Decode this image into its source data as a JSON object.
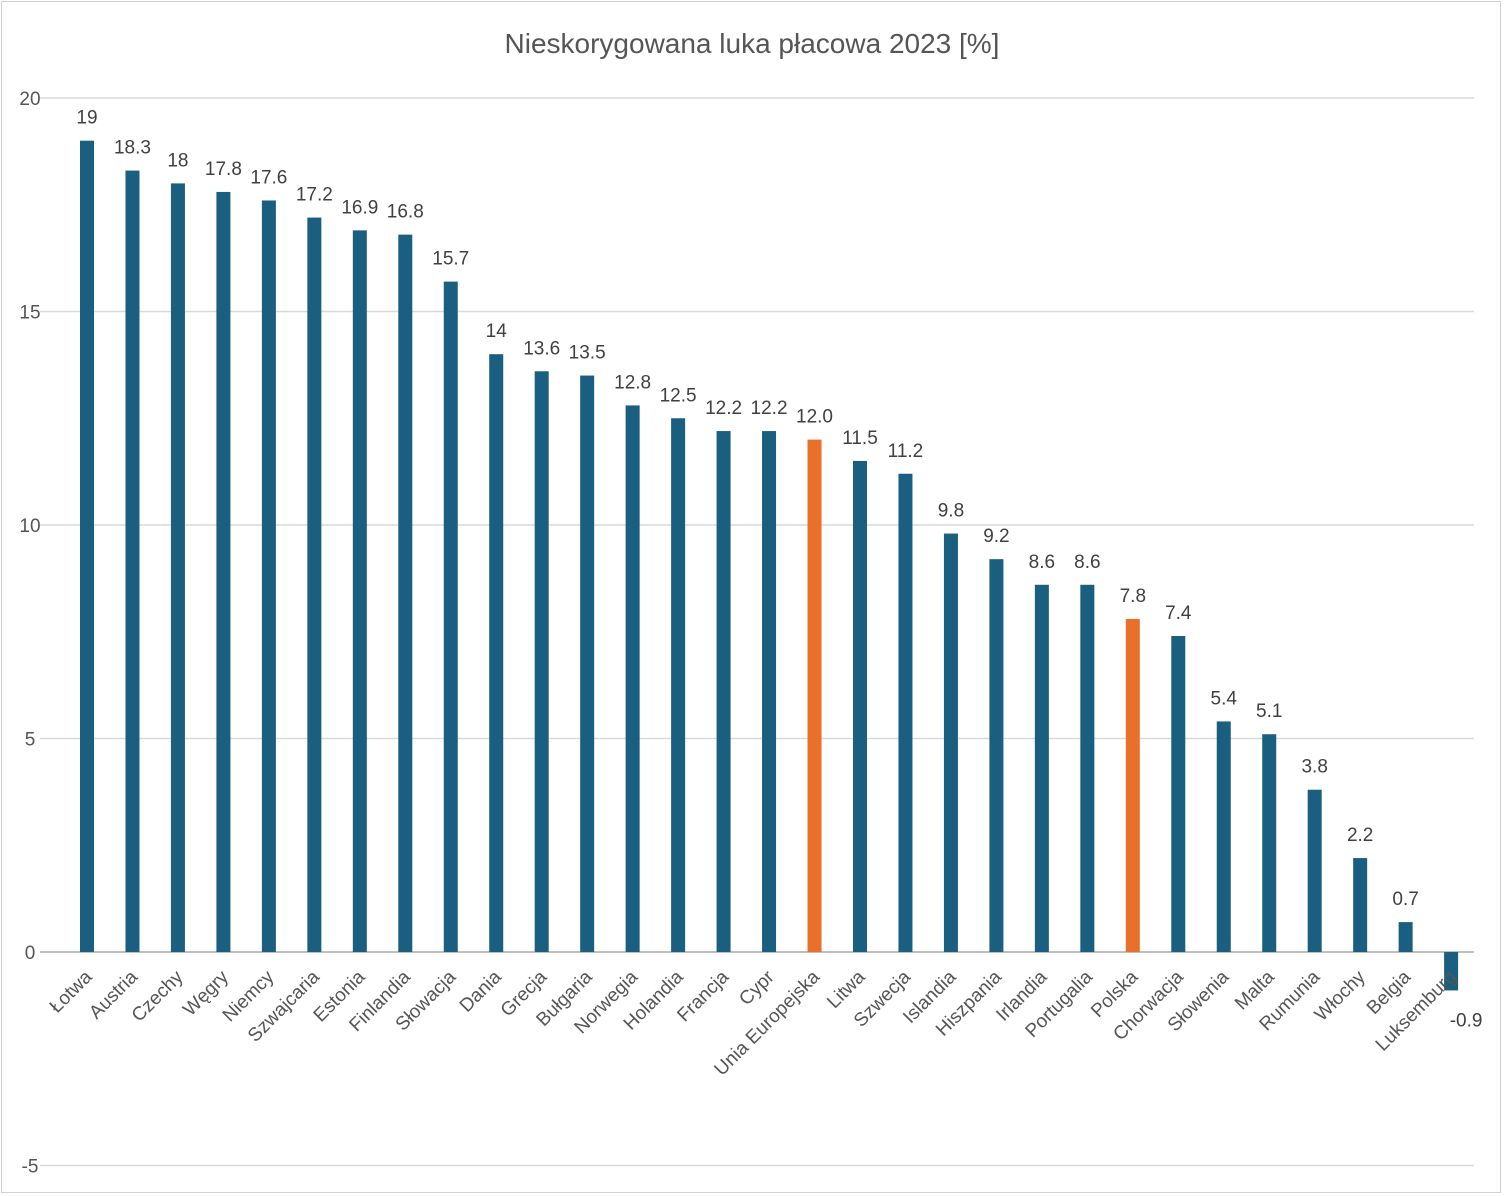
{
  "chart_data": {
    "type": "bar",
    "title": "Nieskorygowana luka płacowa 2023 [%]",
    "xlabel": "",
    "ylabel": "",
    "ylim": [
      -5,
      20
    ],
    "yticks": [
      -5,
      0,
      5,
      10,
      15,
      20
    ],
    "grid": true,
    "legend": "none",
    "categories": [
      "Łotwa",
      "Austria",
      "Czechy",
      "Węgry",
      "Niemcy",
      "Szwajcaria",
      "Estonia",
      "Finlandia",
      "Słowacja",
      "Dania",
      "Grecja",
      "Bułgaria",
      "Norwegia",
      "Holandia",
      "Francja",
      "Cypr",
      "Unia Europejska",
      "Litwa",
      "Szwecja",
      "Islandia",
      "Hiszpania",
      "Irlandia",
      "Portugalia",
      "Polska",
      "Chorwacja",
      "Słowenia",
      "Malta",
      "Rumunia",
      "Włochy",
      "Belgia",
      "Luksemburg"
    ],
    "values": [
      19,
      18.3,
      18,
      17.8,
      17.6,
      17.2,
      16.9,
      16.8,
      15.7,
      14,
      13.6,
      13.5,
      12.8,
      12.5,
      12.2,
      12.2,
      12.0,
      11.5,
      11.2,
      9.8,
      9.2,
      8.6,
      8.6,
      7.8,
      7.4,
      5.4,
      5.1,
      3.8,
      2.2,
      0.7,
      -0.9
    ],
    "data_labels": [
      "19",
      "18.3",
      "18",
      "17.8",
      "17.6",
      "17.2",
      "16.9",
      "16.8",
      "15.7",
      "14",
      "13.6",
      "13.5",
      "12.8",
      "12.5",
      "12.2",
      "12.2",
      "12.0",
      "11.5",
      "11.2",
      "9.8",
      "9.2",
      "8.6",
      "8.6",
      "7.8",
      "7.4",
      "5.4",
      "5.1",
      "3.8",
      "2.2",
      "0.7",
      "-0.9"
    ],
    "highlighted": [
      "Unia Europejska",
      "Polska"
    ],
    "colors": {
      "default": "#1a5e80",
      "highlight": "#e8702a"
    }
  }
}
